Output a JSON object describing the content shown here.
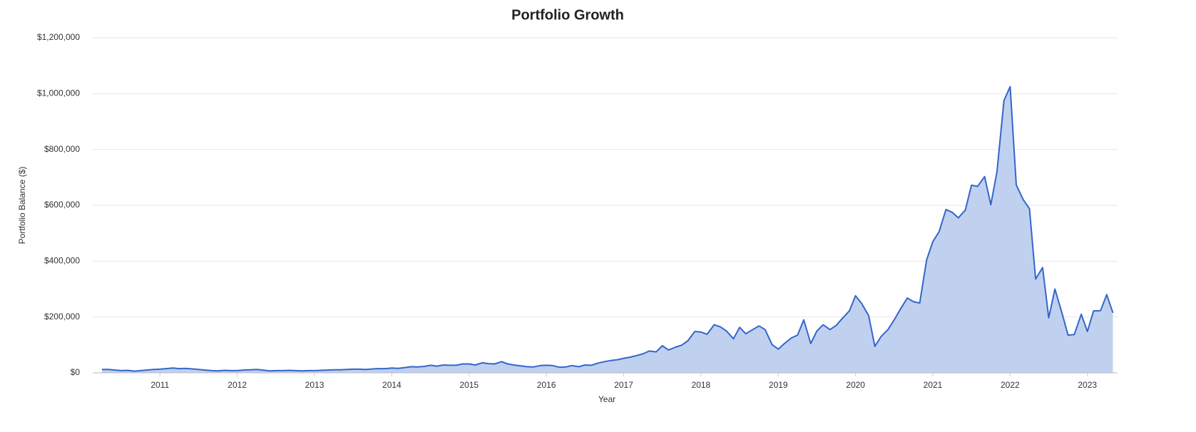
{
  "chart_data": {
    "type": "area",
    "title": "Portfolio Growth",
    "x_label": "Year",
    "y_label": "Portfolio Balance ($)",
    "x": [
      2010.25,
      2010.33,
      2010.42,
      2010.5,
      2010.58,
      2010.67,
      2010.75,
      2010.83,
      2010.92,
      2011,
      2011.08,
      2011.17,
      2011.25,
      2011.33,
      2011.42,
      2011.5,
      2011.58,
      2011.67,
      2011.75,
      2011.83,
      2011.92,
      2012,
      2012.08,
      2012.17,
      2012.25,
      2012.33,
      2012.42,
      2012.5,
      2012.58,
      2012.67,
      2012.75,
      2012.83,
      2012.92,
      2013,
      2013.08,
      2013.17,
      2013.25,
      2013.33,
      2013.42,
      2013.5,
      2013.58,
      2013.67,
      2013.75,
      2013.83,
      2013.92,
      2014,
      2014.08,
      2014.17,
      2014.25,
      2014.33,
      2014.42,
      2014.5,
      2014.58,
      2014.67,
      2014.75,
      2014.83,
      2014.92,
      2015,
      2015.08,
      2015.17,
      2015.25,
      2015.33,
      2015.42,
      2015.5,
      2015.58,
      2015.67,
      2015.75,
      2015.83,
      2015.92,
      2016,
      2016.08,
      2016.17,
      2016.25,
      2016.33,
      2016.42,
      2016.5,
      2016.58,
      2016.67,
      2016.75,
      2016.83,
      2016.92,
      2017,
      2017.08,
      2017.17,
      2017.25,
      2017.33,
      2017.42,
      2017.5,
      2017.58,
      2017.67,
      2017.75,
      2017.83,
      2017.92,
      2018,
      2018.08,
      2018.17,
      2018.25,
      2018.33,
      2018.42,
      2018.5,
      2018.58,
      2018.67,
      2018.75,
      2018.83,
      2018.92,
      2019,
      2019.08,
      2019.17,
      2019.25,
      2019.33,
      2019.42,
      2019.5,
      2019.58,
      2019.67,
      2019.75,
      2019.83,
      2019.92,
      2020,
      2020.08,
      2020.17,
      2020.25,
      2020.33,
      2020.42,
      2020.5,
      2020.58,
      2020.67,
      2020.75,
      2020.83,
      2020.92,
      2021,
      2021.08,
      2021.17,
      2021.25,
      2021.33,
      2021.42,
      2021.5,
      2021.58,
      2021.67,
      2021.75,
      2021.83,
      2021.92,
      2022,
      2022.08,
      2022.17,
      2022.25,
      2022.33,
      2022.42,
      2022.5,
      2022.58,
      2022.67,
      2022.75,
      2022.83,
      2022.92,
      2023,
      2023.08,
      2023.17,
      2023.25,
      2023.33
    ],
    "series": [
      {
        "name": "Portfolio Balance",
        "color": "#3366cc",
        "fill": "#c0d0ef",
        "values": [
          12000,
          12000,
          10000,
          8000,
          9000,
          6000,
          8000,
          10000,
          12000,
          13000,
          15000,
          17000,
          15000,
          16000,
          14000,
          12000,
          10000,
          8000,
          7000,
          9000,
          8000,
          8000,
          10000,
          11000,
          12000,
          10000,
          7000,
          8000,
          8000,
          9000,
          8000,
          7000,
          8000,
          8000,
          9000,
          10000,
          11000,
          11000,
          12000,
          13000,
          13000,
          12000,
          14000,
          15000,
          15000,
          17000,
          16000,
          19000,
          22000,
          21000,
          23000,
          27000,
          24000,
          28000,
          27000,
          27000,
          32000,
          32000,
          28000,
          36000,
          33000,
          32000,
          40000,
          32000,
          28000,
          25000,
          22000,
          21000,
          26000,
          27000,
          26000,
          20000,
          21000,
          26000,
          22000,
          28000,
          27000,
          35000,
          40000,
          44000,
          47000,
          52000,
          56000,
          62000,
          68000,
          78000,
          75000,
          97000,
          82000,
          92000,
          99000,
          115000,
          148000,
          146000,
          138000,
          172000,
          165000,
          150000,
          122000,
          163000,
          140000,
          155000,
          168000,
          155000,
          101000,
          85000,
          105000,
          125000,
          135000,
          190000,
          105000,
          150000,
          172000,
          155000,
          170000,
          195000,
          222000,
          276000,
          248000,
          205000,
          95000,
          130000,
          155000,
          190000,
          228000,
          268000,
          255000,
          250000,
          405000,
          470000,
          505000,
          585000,
          575000,
          555000,
          583000,
          672000,
          668000,
          703000,
          602000,
          720000,
          975000,
          1025000,
          673000,
          620000,
          588000,
          336000,
          377000,
          197000,
          300000,
          215000,
          135000,
          137000,
          210000,
          148000,
          222000,
          223000,
          280000,
          215000
        ]
      }
    ],
    "xlim": [
      2010.13,
      2023.39
    ],
    "xticks": [
      2011,
      2012,
      2013,
      2014,
      2015,
      2016,
      2017,
      2018,
      2019,
      2020,
      2021,
      2022,
      2023
    ],
    "ylim": [
      0,
      1200000
    ],
    "yticks": [
      {
        "value": 0,
        "label": "$0"
      },
      {
        "value": 200000,
        "label": "$200,000"
      },
      {
        "value": 400000,
        "label": "$400,000"
      },
      {
        "value": 600000,
        "label": "$600,000"
      },
      {
        "value": 800000,
        "label": "$800,000"
      },
      {
        "value": 1000000,
        "label": "$1,000,000"
      },
      {
        "value": 1200000,
        "label": "$1,200,000"
      }
    ],
    "grid": true
  }
}
